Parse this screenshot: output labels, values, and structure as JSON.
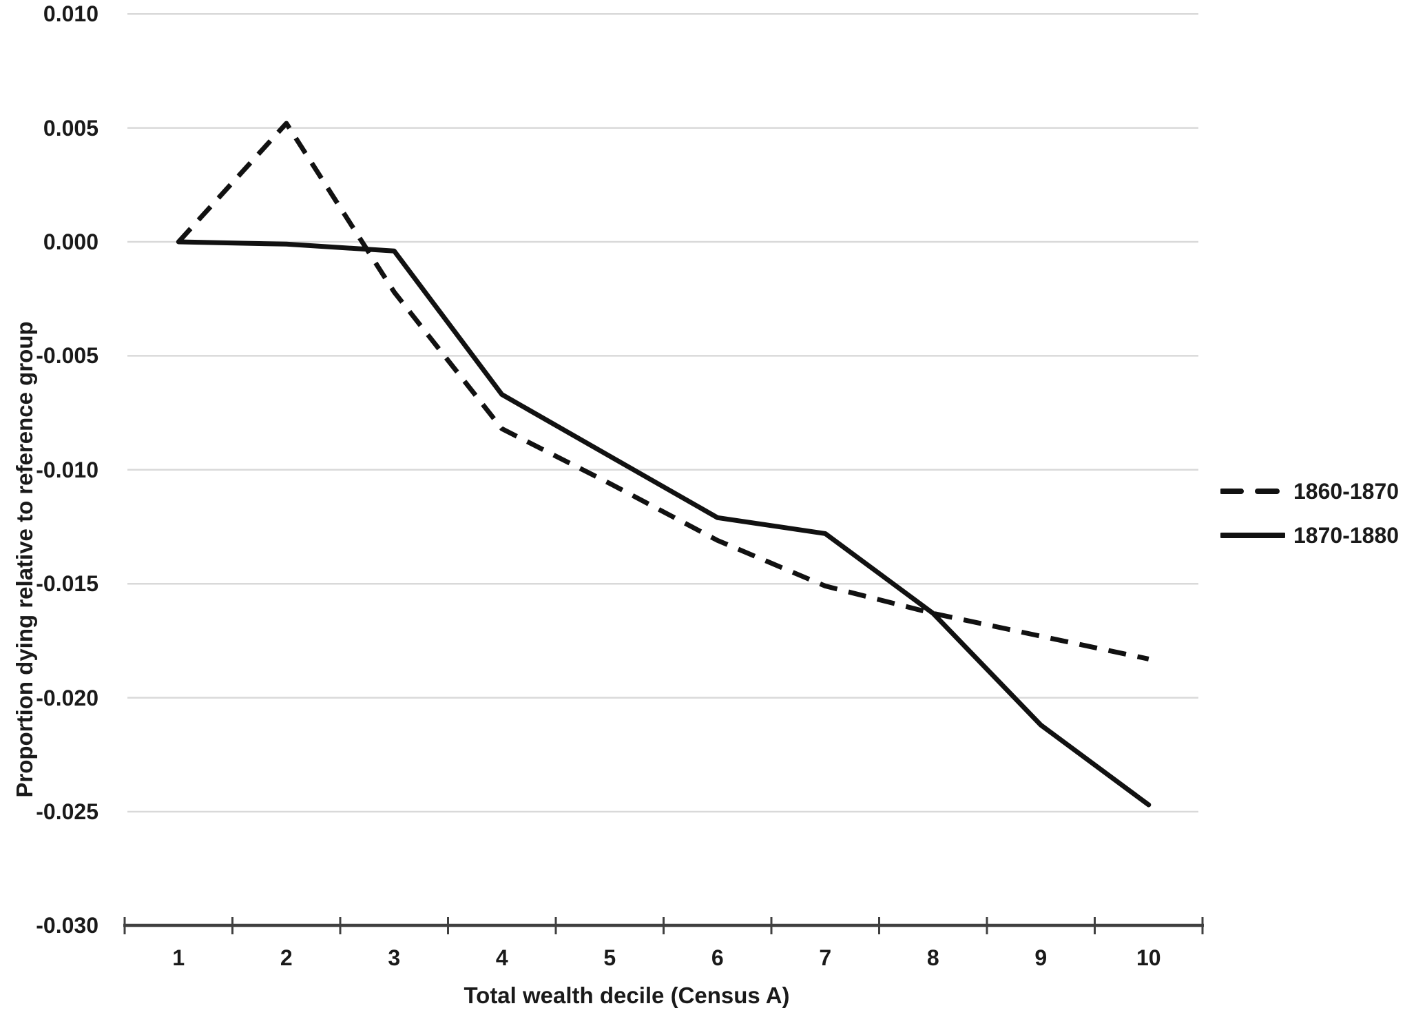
{
  "chart_data": {
    "type": "line",
    "title": "",
    "xlabel": "Total wealth decile (Census A)",
    "ylabel": "Proportion dying relative to reference group",
    "categories": [
      "1",
      "2",
      "3",
      "4",
      "5",
      "6",
      "7",
      "8",
      "9",
      "10"
    ],
    "y_ticks": [
      0.01,
      0.005,
      0.0,
      -0.005,
      -0.01,
      -0.015,
      -0.02,
      -0.025,
      -0.03
    ],
    "y_tick_labels": [
      "0.010",
      "0.005",
      "0.000",
      "-0.005",
      "-0.010",
      "-0.015",
      "-0.020",
      "-0.025",
      "-0.030"
    ],
    "ylim": [
      -0.03,
      0.01
    ],
    "xlim_categories": [
      0.5,
      10.5
    ],
    "grid": "horizontal-gridlines-on",
    "legend_position": "right-middle",
    "series": [
      {
        "name": "1860-1870",
        "style": "dashed",
        "color": "#111111",
        "values": [
          0.0,
          0.0052,
          -0.0022,
          -0.0082,
          -0.0106,
          -0.0131,
          -0.0151,
          -0.0163,
          -0.0173,
          -0.0183
        ]
      },
      {
        "name": "1870-1880",
        "style": "solid",
        "color": "#111111",
        "values": [
          0.0,
          -0.0001,
          -0.0004,
          -0.0067,
          -0.0094,
          -0.0121,
          -0.0128,
          -0.0163,
          -0.0212,
          -0.0247
        ]
      }
    ]
  },
  "colors": {
    "background": "#ffffff",
    "gridline": "#d9d9d9",
    "axis": "#404040",
    "text": "#1a1a1a",
    "series": "#111111"
  }
}
